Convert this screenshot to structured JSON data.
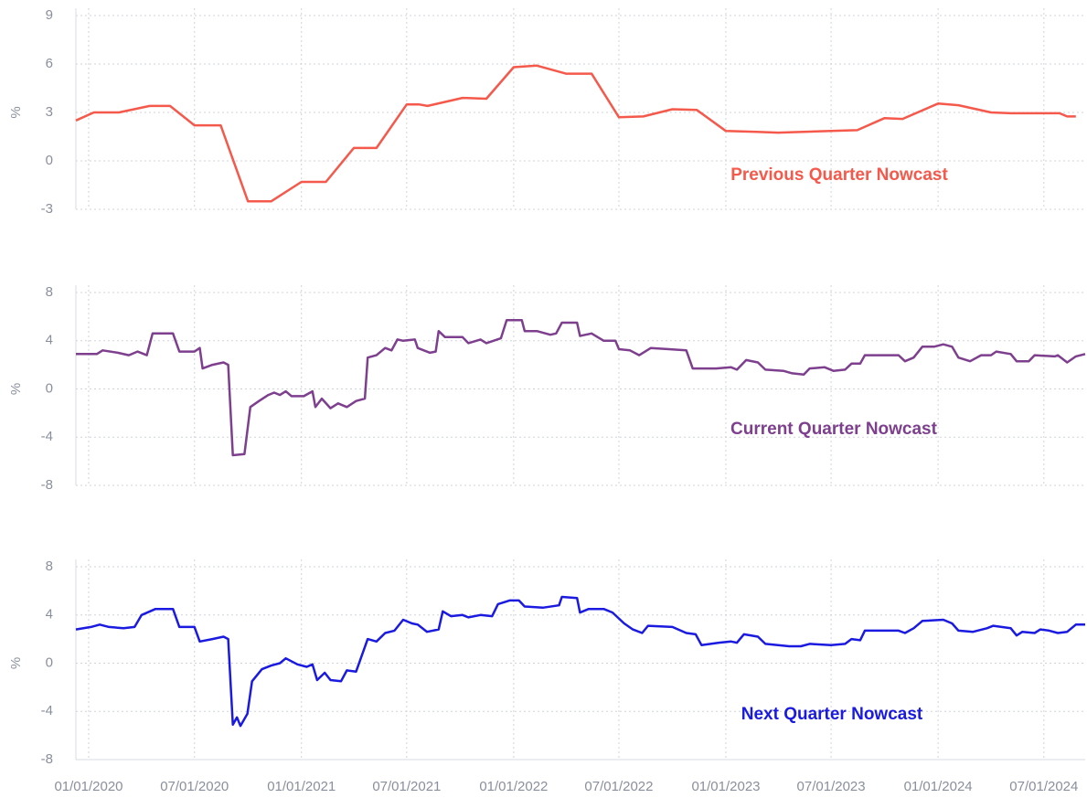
{
  "chart_data": [
    {
      "type": "line",
      "ylabel": "%",
      "xlim": [
        "12/10/2019",
        "09/10/2024"
      ],
      "xticks": [
        "01/01/2020",
        "07/01/2020",
        "01/01/2021",
        "07/01/2021",
        "01/01/2022",
        "07/01/2022",
        "01/01/2023",
        "07/01/2023",
        "01/01/2024",
        "07/01/2024"
      ],
      "ylim": [
        -3,
        9
      ],
      "yticks": [
        -3,
        0,
        3,
        6,
        9
      ],
      "grid": true,
      "x": [
        "12/10/2019",
        "01/10/2020",
        "02/22/2020",
        "04/15/2020",
        "05/20/2020",
        "07/01/2020",
        "08/15/2020",
        "10/01/2020",
        "11/10/2020",
        "01/01/2021",
        "02/12/2021",
        "04/01/2021",
        "05/10/2021",
        "07/01/2021",
        "07/22/2021",
        "08/06/2021",
        "10/05/2021",
        "11/15/2021",
        "01/01/2022",
        "02/10/2022",
        "04/01/2022",
        "05/15/2022",
        "07/01/2022",
        "08/12/2022",
        "10/01/2022",
        "11/12/2022",
        "01/01/2023",
        "02/23/2023",
        "04/01/2023",
        "07/01/2023",
        "08/15/2023",
        "10/01/2023",
        "11/01/2023",
        "01/01/2024",
        "02/05/2024",
        "04/01/2024",
        "05/05/2024",
        "07/28/2024",
        "08/10/2024",
        "08/25/2024"
      ],
      "series": [
        {
          "name": "Previous Quarter Nowcast",
          "color": "#f4594b",
          "values": [
            2.5,
            3.0,
            3.0,
            3.4,
            3.4,
            2.2,
            2.2,
            -2.5,
            -2.5,
            -1.3,
            -1.3,
            0.8,
            0.8,
            3.5,
            3.5,
            3.4,
            3.9,
            3.85,
            5.8,
            5.9,
            5.4,
            5.4,
            2.7,
            2.75,
            3.2,
            3.15,
            1.85,
            1.8,
            1.75,
            1.85,
            1.9,
            2.65,
            2.6,
            3.55,
            3.45,
            3.0,
            2.95,
            2.95,
            2.75,
            2.75
          ]
        }
      ]
    },
    {
      "type": "line",
      "ylabel": "%",
      "xlim": [
        "12/10/2019",
        "09/10/2024"
      ],
      "xticks": [
        "01/01/2020",
        "07/01/2020",
        "01/01/2021",
        "07/01/2021",
        "01/01/2022",
        "07/01/2022",
        "01/01/2023",
        "07/01/2023",
        "01/01/2024",
        "07/01/2024"
      ],
      "ylim": [
        -8,
        8
      ],
      "yticks": [
        -8,
        -4,
        0,
        4,
        8
      ],
      "grid": true,
      "x": [
        "12/10/2019",
        "01/15/2020",
        "01/25/2020",
        "02/20/2020",
        "03/10/2020",
        "03/25/2020",
        "04/10/2020",
        "04/20/2020",
        "05/25/2020",
        "06/05/2020",
        "07/01/2020",
        "07/10/2020",
        "07/15/2020",
        "08/01/2020",
        "08/20/2020",
        "08/28/2020",
        "09/05/2020",
        "09/25/2020",
        "10/05/2020",
        "10/20/2020",
        "11/05/2020",
        "11/15/2020",
        "11/25/2020",
        "12/05/2020",
        "12/15/2020",
        "01/05/2021",
        "01/20/2021",
        "01/25/2021",
        "02/05/2021",
        "02/20/2021",
        "03/05/2021",
        "03/20/2021",
        "04/05/2021",
        "04/20/2021",
        "04/25/2021",
        "05/10/2021",
        "05/25/2021",
        "06/05/2021",
        "06/15/2021",
        "06/25/2021",
        "07/15/2021",
        "07/20/2021",
        "08/10/2021",
        "08/20/2021",
        "08/25/2021",
        "09/05/2021",
        "10/05/2021",
        "10/15/2021",
        "11/05/2021",
        "11/15/2021",
        "12/10/2021",
        "12/20/2021",
        "01/15/2022",
        "01/20/2022",
        "02/10/2022",
        "03/05/2022",
        "03/15/2022",
        "03/25/2022",
        "04/20/2022",
        "04/25/2022",
        "05/15/2022",
        "06/05/2022",
        "06/25/2022",
        "07/01/2022",
        "07/20/2022",
        "08/05/2022",
        "08/25/2022",
        "09/25/2022",
        "10/25/2022",
        "11/05/2022",
        "12/15/2022",
        "01/10/2023",
        "01/20/2023",
        "02/05/2023",
        "02/25/2023",
        "03/10/2023",
        "04/10/2023",
        "04/25/2023",
        "05/15/2023",
        "05/25/2023",
        "06/20/2023",
        "07/05/2023",
        "07/25/2023",
        "08/05/2023",
        "08/20/2023",
        "08/28/2023",
        "10/25/2023",
        "11/05/2023",
        "11/20/2023",
        "12/05/2023",
        "12/25/2023",
        "01/10/2024",
        "01/25/2024",
        "02/05/2024",
        "02/25/2024",
        "03/15/2024",
        "04/01/2024",
        "04/10/2024",
        "05/05/2024",
        "05/15/2024",
        "06/05/2024",
        "06/15/2024",
        "07/20/2024",
        "07/25/2024",
        "08/10/2024",
        "08/25/2024",
        "09/10/2024"
      ],
      "series": [
        {
          "name": "Current Quarter Nowcast",
          "color": "#7d3f8e",
          "values": [
            2.9,
            2.9,
            3.2,
            3.0,
            2.8,
            3.1,
            2.8,
            4.6,
            4.6,
            3.1,
            3.1,
            3.4,
            1.7,
            2.0,
            2.2,
            2.0,
            -5.5,
            -5.4,
            -1.5,
            -1.0,
            -0.5,
            -0.3,
            -0.5,
            -0.2,
            -0.6,
            -0.6,
            -0.2,
            -1.5,
            -0.8,
            -1.6,
            -1.2,
            -1.5,
            -1.0,
            -0.8,
            2.6,
            2.8,
            3.4,
            3.2,
            4.1,
            4.0,
            4.1,
            3.4,
            3.0,
            3.1,
            4.8,
            4.3,
            4.3,
            3.8,
            4.1,
            3.8,
            4.2,
            5.7,
            5.7,
            4.8,
            4.8,
            4.5,
            4.6,
            5.5,
            5.5,
            4.4,
            4.6,
            4.0,
            4.0,
            3.3,
            3.2,
            2.8,
            3.4,
            3.3,
            3.2,
            1.7,
            1.7,
            1.8,
            1.6,
            2.4,
            2.2,
            1.6,
            1.5,
            1.3,
            1.2,
            1.7,
            1.8,
            1.5,
            1.6,
            2.1,
            2.1,
            2.8,
            2.8,
            2.3,
            2.6,
            3.5,
            3.5,
            3.7,
            3.5,
            2.6,
            2.3,
            2.8,
            2.8,
            3.1,
            2.9,
            2.3,
            2.3,
            2.8,
            2.7,
            2.8,
            2.2,
            2.7,
            2.9
          ]
        }
      ]
    },
    {
      "type": "line",
      "ylabel": "%",
      "xlim": [
        "12/10/2019",
        "09/10/2024"
      ],
      "xticks": [
        "01/01/2020",
        "07/01/2020",
        "01/01/2021",
        "07/01/2021",
        "01/01/2022",
        "07/01/2022",
        "01/01/2023",
        "07/01/2023",
        "01/01/2024",
        "07/01/2024"
      ],
      "ylim": [
        -8,
        8
      ],
      "yticks": [
        -8,
        -4,
        0,
        4,
        8
      ],
      "grid": true,
      "x": [
        "12/10/2019",
        "01/05/2020",
        "01/20/2020",
        "02/05/2020",
        "03/01/2020",
        "03/20/2020",
        "04/01/2020",
        "04/25/2020",
        "05/25/2020",
        "06/05/2020",
        "07/01/2020",
        "07/10/2020",
        "08/01/2020",
        "08/20/2020",
        "08/28/2020",
        "09/05/2020",
        "09/12/2020",
        "09/18/2020",
        "09/30/2020",
        "10/08/2020",
        "10/25/2020",
        "11/10/2020",
        "11/25/2020",
        "12/05/2020",
        "12/25/2020",
        "01/10/2021",
        "01/20/2021",
        "01/28/2021",
        "02/10/2021",
        "02/20/2021",
        "03/10/2021",
        "03/20/2021",
        "04/05/2021",
        "04/25/2021",
        "05/10/2021",
        "05/25/2021",
        "06/10/2021",
        "06/25/2021",
        "07/10/2021",
        "07/20/2021",
        "08/05/2021",
        "08/25/2021",
        "09/01/2021",
        "09/15/2021",
        "10/05/2021",
        "10/15/2021",
        "11/05/2021",
        "11/25/2021",
        "12/05/2021",
        "12/25/2021",
        "01/10/2022",
        "01/20/2022",
        "02/20/2022",
        "03/20/2022",
        "03/25/2022",
        "04/20/2022",
        "04/25/2022",
        "05/10/2022",
        "06/05/2022",
        "06/20/2022",
        "07/10/2022",
        "07/25/2022",
        "08/10/2022",
        "08/20/2022",
        "10/01/2022",
        "10/25/2022",
        "11/10/2022",
        "11/20/2022",
        "12/20/2022",
        "01/10/2023",
        "01/20/2023",
        "02/01/2023",
        "02/25/2023",
        "03/10/2023",
        "04/20/2023",
        "05/10/2023",
        "05/25/2023",
        "07/01/2023",
        "07/25/2023",
        "08/05/2023",
        "08/20/2023",
        "08/28/2023",
        "10/25/2023",
        "11/05/2023",
        "11/20/2023",
        "12/05/2023",
        "01/10/2024",
        "01/25/2024",
        "02/05/2024",
        "03/01/2024",
        "03/25/2024",
        "04/05/2024",
        "05/05/2024",
        "05/15/2024",
        "05/25/2024",
        "06/15/2024",
        "06/25/2024",
        "07/10/2024",
        "07/25/2024",
        "08/10/2024",
        "08/25/2024",
        "09/10/2024"
      ],
      "series": [
        {
          "name": "Next Quarter Nowcast",
          "color": "#1a1ae0",
          "values": [
            2.8,
            3.0,
            3.2,
            3.0,
            2.9,
            3.0,
            4.0,
            4.5,
            4.5,
            3.0,
            3.0,
            1.8,
            2.0,
            2.2,
            2.0,
            -5.1,
            -4.5,
            -5.2,
            -4.2,
            -1.5,
            -0.5,
            -0.2,
            0.0,
            0.4,
            -0.1,
            -0.3,
            -0.1,
            -1.4,
            -0.8,
            -1.4,
            -1.5,
            -0.6,
            -0.7,
            2.0,
            1.8,
            2.5,
            2.7,
            3.6,
            3.3,
            3.2,
            2.6,
            2.8,
            4.3,
            3.9,
            4.0,
            3.8,
            4.0,
            3.9,
            4.9,
            5.2,
            5.2,
            4.7,
            4.6,
            4.8,
            5.5,
            5.4,
            4.2,
            4.5,
            4.5,
            4.2,
            3.3,
            2.8,
            2.5,
            3.1,
            3.0,
            2.5,
            2.4,
            1.5,
            1.7,
            1.8,
            1.7,
            2.4,
            2.2,
            1.6,
            1.4,
            1.4,
            1.6,
            1.5,
            1.6,
            2.0,
            1.9,
            2.7,
            2.7,
            2.5,
            2.9,
            3.5,
            3.6,
            3.3,
            2.7,
            2.6,
            2.9,
            3.1,
            2.9,
            2.3,
            2.6,
            2.5,
            2.8,
            2.7,
            2.5,
            2.6,
            3.2,
            3.2
          ]
        }
      ]
    }
  ]
}
